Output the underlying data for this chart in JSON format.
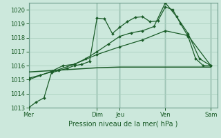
{
  "xlabel": "Pression niveau de la mer( hPa )",
  "bg_color": "#cce8dc",
  "grid_color_major": "#aacfbf",
  "grid_color_minor": "#c0ddd0",
  "line_color": "#1a5c28",
  "vline_color": "#6b9b8a",
  "ylim": [
    1013,
    1020.5
  ],
  "xlim": [
    0,
    8.3
  ],
  "day_labels": [
    "Mer",
    "Dim",
    "Jeu",
    "Ven",
    "Sam"
  ],
  "day_positions": [
    0,
    3.0,
    4.0,
    6.0,
    8.0
  ],
  "series1_x": [
    0,
    0.33,
    0.67,
    1.0,
    1.33,
    1.67,
    2.0,
    2.33,
    2.67,
    3.0,
    3.33,
    3.67,
    4.0,
    4.33,
    4.67,
    5.0,
    5.33,
    5.67,
    6.0,
    6.33,
    6.67,
    7.0,
    7.33,
    7.67,
    8.0
  ],
  "series1_y": [
    1013.0,
    1013.4,
    1013.7,
    1015.5,
    1015.65,
    1015.8,
    1016.0,
    1016.1,
    1016.3,
    1019.4,
    1019.35,
    1018.3,
    1018.75,
    1019.15,
    1019.45,
    1019.5,
    1019.15,
    1019.2,
    1020.2,
    1020.0,
    1019.0,
    1018.1,
    1016.5,
    1016.0,
    1016.0
  ],
  "series2_x": [
    0,
    1.0,
    2.0,
    3.0,
    4.0,
    5.0,
    6.0,
    6.33,
    6.67,
    7.0,
    7.33,
    7.67,
    8.0
  ],
  "series2_y": [
    1015.55,
    1015.65,
    1015.75,
    1015.85,
    1015.9,
    1015.9,
    1015.9,
    1015.9,
    1015.9,
    1015.9,
    1015.9,
    1015.9,
    1015.9
  ],
  "series3_x": [
    0,
    0.5,
    1.0,
    1.5,
    2.0,
    2.5,
    3.0,
    3.5,
    4.0,
    4.5,
    5.0,
    5.5,
    6.0,
    6.5,
    7.0,
    7.5,
    8.0
  ],
  "series3_y": [
    1015.0,
    1015.3,
    1015.6,
    1016.0,
    1016.1,
    1016.5,
    1017.0,
    1017.55,
    1018.1,
    1018.35,
    1018.5,
    1018.8,
    1020.5,
    1019.5,
    1018.3,
    1016.5,
    1016.0
  ],
  "series4_x": [
    0,
    1.0,
    2.0,
    3.0,
    4.0,
    5.0,
    6.0,
    7.0,
    8.0
  ],
  "series4_y": [
    1015.1,
    1015.55,
    1016.1,
    1016.8,
    1017.35,
    1017.85,
    1018.5,
    1018.15,
    1016.0
  ],
  "vline_positions": [
    0,
    3.0,
    4.0,
    6.0,
    8.0
  ]
}
